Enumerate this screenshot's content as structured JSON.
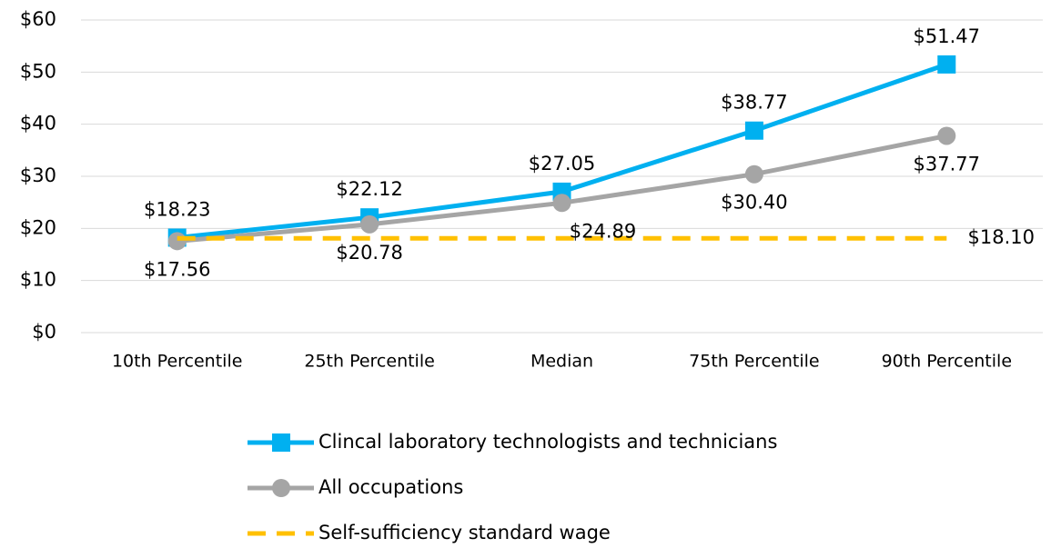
{
  "chart_data": {
    "type": "line",
    "categories": [
      "10th Percentile",
      "25th Percentile",
      "Median",
      "75th Percentile",
      "90th Percentile"
    ],
    "series": [
      {
        "name": "Clincal laboratory technologists and technicians",
        "color": "#00b0f0",
        "marker": "square",
        "values": [
          18.23,
          22.12,
          27.05,
          38.77,
          51.47
        ],
        "value_labels": [
          "$18.23",
          "$22.12",
          "$27.05",
          "$38.77",
          "$51.47"
        ]
      },
      {
        "name": "All occupations",
        "color": "#a5a5a5",
        "marker": "circle",
        "values": [
          17.56,
          20.78,
          24.89,
          30.4,
          37.77
        ],
        "value_labels": [
          "$17.56",
          "$20.78",
          "$24.89",
          "$30.40",
          "$37.77"
        ]
      },
      {
        "name": "Self-sufficiency standard wage",
        "color": "#ffc000",
        "dashed": true,
        "values": [
          18.1,
          18.1,
          18.1,
          18.1,
          18.1
        ],
        "value_labels": [
          null,
          null,
          null,
          null,
          "$18.10"
        ]
      }
    ],
    "ylim": [
      0,
      60
    ],
    "yticks": [
      {
        "value": 0,
        "label": "$0"
      },
      {
        "value": 10,
        "label": "$10"
      },
      {
        "value": 20,
        "label": "$20"
      },
      {
        "value": 30,
        "label": "$30"
      },
      {
        "value": 40,
        "label": "$40"
      },
      {
        "value": 50,
        "label": "$50"
      },
      {
        "value": 60,
        "label": "$60"
      }
    ],
    "grid": true,
    "legend": "bottom"
  }
}
